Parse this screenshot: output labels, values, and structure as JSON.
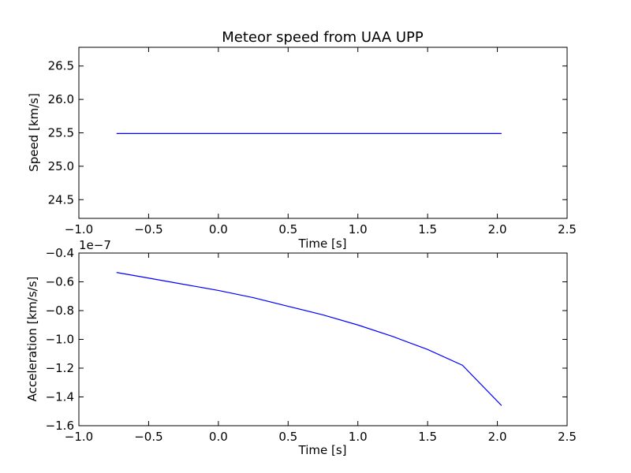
{
  "chart_data": [
    {
      "type": "line",
      "title": "Meteor speed from  UAA UPP",
      "xlabel": "Time [s]",
      "ylabel": "Speed [km/s]",
      "xlim": [
        -1.0,
        2.5
      ],
      "ylim": [
        24.22,
        26.78
      ],
      "xticks": [
        -1.0,
        -0.5,
        0.0,
        0.5,
        1.0,
        1.5,
        2.0,
        2.5
      ],
      "xtick_labels": [
        "−1.0",
        "−0.5",
        "0.0",
        "0.5",
        "1.0",
        "1.5",
        "2.0",
        "2.5"
      ],
      "yticks": [
        24.5,
        25.0,
        25.5,
        26.0,
        26.5
      ],
      "ytick_labels": [
        "24.5",
        "25.0",
        "25.5",
        "26.0",
        "26.5"
      ],
      "grid": false,
      "series": [
        {
          "color": "#0000ff",
          "x": [
            -0.73,
            2.03
          ],
          "y": [
            25.49,
            25.49
          ]
        }
      ]
    },
    {
      "type": "line",
      "xlabel": "Time [s]",
      "ylabel": "Acceleration [km/s/s]",
      "offset_text": "1e−7",
      "xlim": [
        -1.0,
        2.5
      ],
      "ylim": [
        -1.6,
        -0.4
      ],
      "xticks": [
        -1.0,
        -0.5,
        0.0,
        0.5,
        1.0,
        1.5,
        2.0,
        2.5
      ],
      "xtick_labels": [
        "−1.0",
        "−0.5",
        "0.0",
        "0.5",
        "1.0",
        "1.5",
        "2.0",
        "2.5"
      ],
      "yticks": [
        -1.6,
        -1.4,
        -1.2,
        -1.0,
        -0.8,
        -0.6,
        -0.4
      ],
      "ytick_labels": [
        "−1.6",
        "−1.4",
        "−1.2",
        "−1.0",
        "−0.8",
        "−0.6",
        "−0.4"
      ],
      "grid": false,
      "series": [
        {
          "color": "#0000ff",
          "x": [
            -0.73,
            -0.5,
            -0.25,
            0.0,
            0.25,
            0.5,
            0.75,
            1.0,
            1.25,
            1.5,
            1.75,
            2.03
          ],
          "y": [
            -0.535,
            -0.574,
            -0.617,
            -0.66,
            -0.71,
            -0.77,
            -0.83,
            -0.9,
            -0.98,
            -1.07,
            -1.18,
            -1.46
          ]
        }
      ]
    }
  ]
}
